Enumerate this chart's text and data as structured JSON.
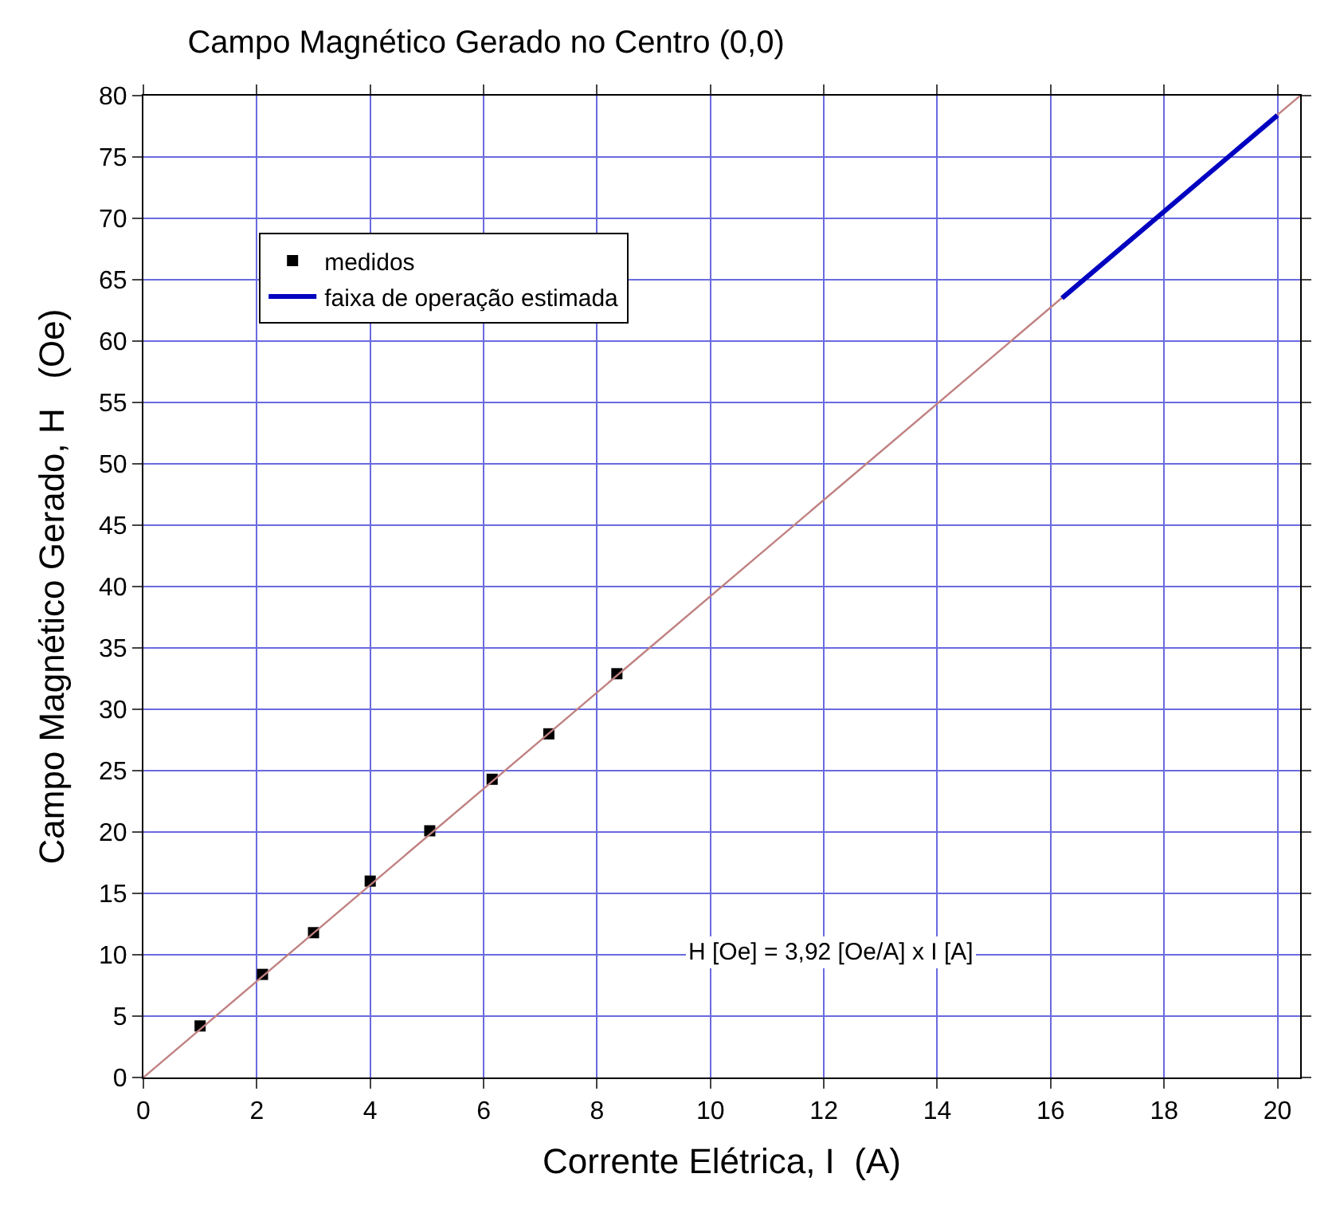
{
  "chart_data": {
    "type": "scatter",
    "title": "Campo Magnético Gerado no Centro (0,0)",
    "xlabel": "Corrente Elétrica, I  (A)",
    "ylabel": "Campo Magnético Gerado, H   (Oe)",
    "series": [
      {
        "name": "medidos",
        "marker": "square",
        "color": "#000000",
        "x": [
          1.0,
          2.1,
          3.0,
          4.0,
          5.05,
          6.15,
          7.15,
          8.35
        ],
        "values": [
          4.2,
          8.4,
          11.8,
          16.0,
          20.1,
          24.3,
          28.0,
          32.9
        ]
      },
      {
        "type": "line",
        "marker": "none",
        "color": "#c08080",
        "x": [
          0,
          20.4
        ],
        "values": [
          0,
          80.0
        ]
      },
      {
        "name": "faixa de operação estimada",
        "type": "line",
        "marker": "none",
        "color": "#0000c0",
        "x": [
          16.2,
          20.0
        ],
        "values": [
          63.5,
          78.4
        ]
      }
    ],
    "annotations": [
      "H [Oe] = 3,92 [Oe/A] x I [A]"
    ],
    "xlim": [
      0,
      20.4
    ],
    "ylim": [
      0,
      80
    ],
    "xticks": [
      0,
      2,
      4,
      6,
      8,
      10,
      12,
      14,
      16,
      18,
      20
    ],
    "yticks": [
      0,
      5,
      10,
      15,
      20,
      25,
      30,
      35,
      40,
      45,
      50,
      55,
      60,
      65,
      70,
      75,
      80
    ],
    "grid": true,
    "legend": "top left"
  }
}
